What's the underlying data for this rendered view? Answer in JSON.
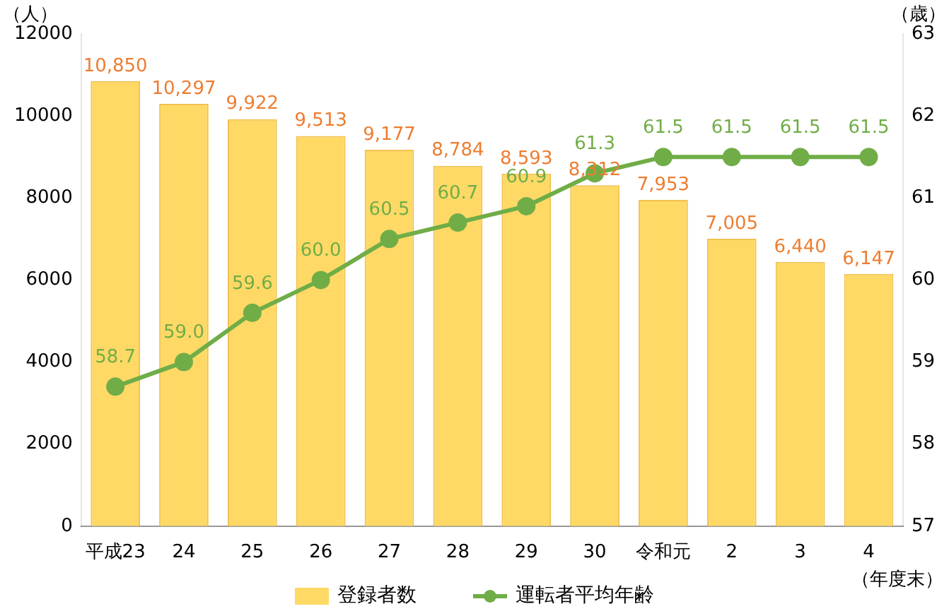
{
  "chart_data": {
    "type": "bar",
    "categories": [
      "平成23",
      "24",
      "25",
      "26",
      "27",
      "28",
      "29",
      "30",
      "令和元",
      "2",
      "3",
      "4"
    ],
    "series": [
      {
        "name": "登録者数",
        "color": "#ffd966",
        "values": [
          10850,
          10297,
          9922,
          9513,
          9177,
          8784,
          8593,
          8312,
          7953,
          7005,
          6440,
          6147
        ],
        "value_labels": [
          "10,850",
          "10,297",
          "9,922",
          "9,513",
          "9,177",
          "8,784",
          "8,593",
          "8,312",
          "7,953",
          "7,005",
          "6,440",
          "6,147"
        ]
      },
      {
        "name": "運転者平均年齢",
        "type": "line",
        "axis": "y2",
        "color": "#70ad47",
        "marker": "circle",
        "values": [
          58.7,
          59.0,
          59.6,
          60.0,
          60.5,
          60.7,
          60.9,
          61.3,
          61.5,
          61.5,
          61.5,
          61.5
        ],
        "value_labels": [
          "58.7",
          "59.0",
          "59.6",
          "60.0",
          "60.5",
          "60.7",
          "60.9",
          "61.3",
          "61.5",
          "61.5",
          "61.5",
          "61.5"
        ]
      }
    ],
    "ylabel": "（人）",
    "y2label": "（歳）",
    "xlabel": "（年度末）",
    "ylim": [
      0,
      12000
    ],
    "yticks": [
      0,
      2000,
      4000,
      6000,
      8000,
      10000,
      12000
    ],
    "y2lim": [
      57,
      63
    ],
    "y2ticks": [
      57,
      58,
      59,
      60,
      61,
      62,
      63
    ],
    "grid": false,
    "legend": "bottom"
  }
}
